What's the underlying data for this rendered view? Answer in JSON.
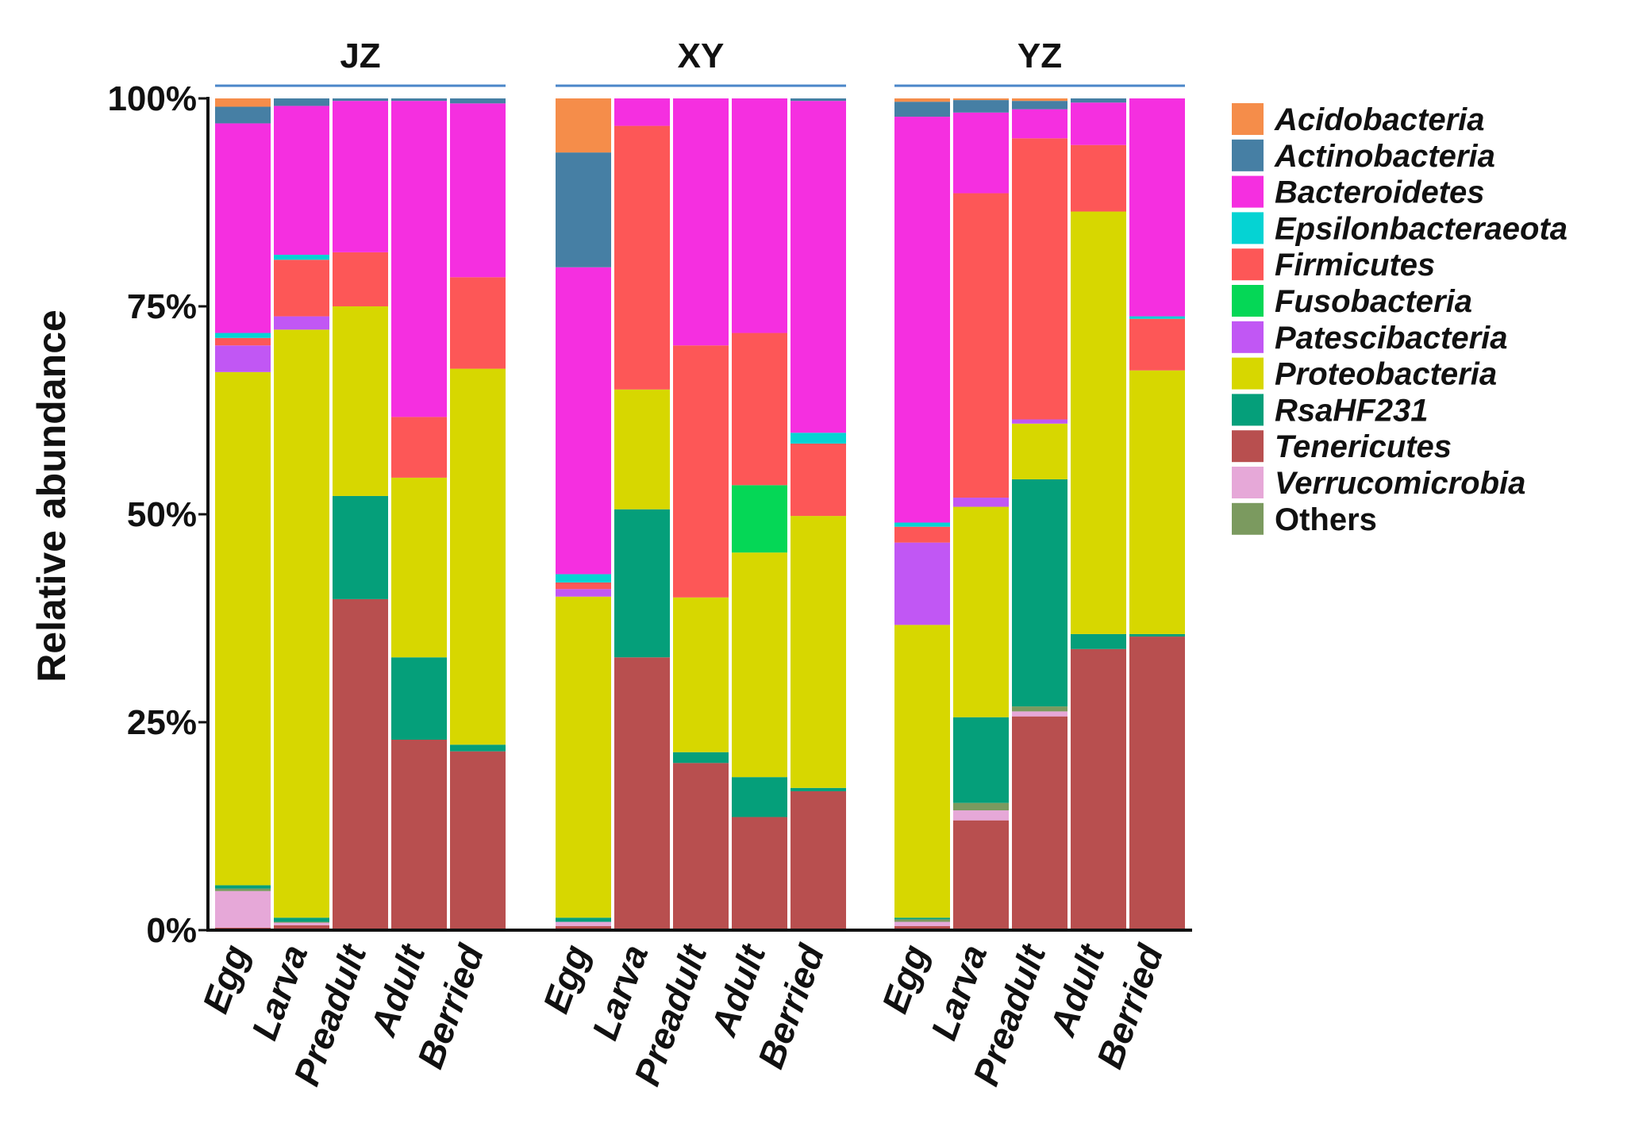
{
  "chart_data": {
    "type": "bar",
    "stacked": true,
    "ylabel": "Relative abundance",
    "ylim": [
      0,
      100
    ],
    "yticks": [
      {
        "value": 0,
        "label": "0%"
      },
      {
        "value": 25,
        "label": "25%"
      },
      {
        "value": 50,
        "label": "50%"
      },
      {
        "value": 75,
        "label": "75%"
      },
      {
        "value": 100,
        "label": "100%"
      }
    ],
    "taxa": [
      {
        "name": "Tenericutes",
        "color": "#b84f4f"
      },
      {
        "name": "Verrucomicrobia",
        "color": "#e6a8d8"
      },
      {
        "name": "Others",
        "color": "#7b9a5f"
      },
      {
        "name": "RsaHF231",
        "color": "#059f7a"
      },
      {
        "name": "Proteobacteria",
        "color": "#d7d700"
      },
      {
        "name": "Patescibacteria",
        "color": "#c157f4"
      },
      {
        "name": "Fusobacteria",
        "color": "#05d756"
      },
      {
        "name": "Firmicutes",
        "color": "#fd5757"
      },
      {
        "name": "Epsilonbacteraeota",
        "color": "#05d3d3"
      },
      {
        "name": "Bacteroidetes",
        "color": "#f52fe0"
      },
      {
        "name": "Actinobacteria",
        "color": "#467fa4"
      },
      {
        "name": "Acidobacteria",
        "color": "#f58d4a"
      }
    ],
    "legend": [
      {
        "name": "Acidobacteria",
        "color": "#f58d4a"
      },
      {
        "name": "Actinobacteria",
        "color": "#467fa4"
      },
      {
        "name": "Bacteroidetes",
        "color": "#f52fe0"
      },
      {
        "name": "Epsilonbacteraeota",
        "color": "#05d3d3"
      },
      {
        "name": "Firmicutes",
        "color": "#fd5757"
      },
      {
        "name": "Fusobacteria",
        "color": "#05d756"
      },
      {
        "name": "Patescibacteria",
        "color": "#c157f4"
      },
      {
        "name": "Proteobacteria",
        "color": "#d7d700"
      },
      {
        "name": "RsaHF231",
        "color": "#059f7a"
      },
      {
        "name": "Tenericutes",
        "color": "#b84f4f"
      },
      {
        "name": "Verrucomicrobia",
        "color": "#e6a8d8"
      },
      {
        "name": "Others",
        "color": "#7b9a5f"
      }
    ],
    "groups": [
      {
        "name": "JZ",
        "bars": [
          {
            "category": "Egg",
            "values": {
              "Tenericutes": 0.3,
              "Verrucomicrobia": 4.4,
              "Others": 0.3,
              "RsaHF231": 0.4,
              "Proteobacteria": 61.7,
              "Patescibacteria": 3.2,
              "Fusobacteria": 0,
              "Firmicutes": 0.9,
              "Epsilonbacteraeota": 0.6,
              "Bacteroidetes": 25.2,
              "Actinobacteria": 2.0,
              "Acidobacteria": 1.0
            }
          },
          {
            "category": "Larva",
            "values": {
              "Tenericutes": 0.6,
              "Verrucomicrobia": 0.3,
              "Others": 0.1,
              "RsaHF231": 0.5,
              "Proteobacteria": 70.7,
              "Patescibacteria": 1.6,
              "Fusobacteria": 0,
              "Firmicutes": 6.8,
              "Epsilonbacteraeota": 0.6,
              "Bacteroidetes": 17.9,
              "Actinobacteria": 0.9,
              "Acidobacteria": 0
            }
          },
          {
            "category": "Preadult",
            "values": {
              "Tenericutes": 39.8,
              "Verrucomicrobia": 0,
              "Others": 0,
              "RsaHF231": 12.4,
              "Proteobacteria": 22.8,
              "Patescibacteria": 0,
              "Fusobacteria": 0,
              "Firmicutes": 6.5,
              "Epsilonbacteraeota": 0,
              "Bacteroidetes": 18.2,
              "Actinobacteria": 0.3,
              "Acidobacteria": 0
            }
          },
          {
            "category": "Adult",
            "values": {
              "Tenericutes": 22.9,
              "Verrucomicrobia": 0,
              "Others": 0,
              "RsaHF231": 9.9,
              "Proteobacteria": 21.6,
              "Patescibacteria": 0,
              "Fusobacteria": 0,
              "Firmicutes": 7.3,
              "Epsilonbacteraeota": 0,
              "Bacteroidetes": 38.0,
              "Actinobacteria": 0.3,
              "Acidobacteria": 0
            }
          },
          {
            "category": "Berried",
            "values": {
              "Tenericutes": 21.5,
              "Verrucomicrobia": 0,
              "Others": 0,
              "RsaHF231": 0.8,
              "Proteobacteria": 45.2,
              "Patescibacteria": 0,
              "Fusobacteria": 0,
              "Firmicutes": 11.0,
              "Epsilonbacteraeota": 0,
              "Bacteroidetes": 20.9,
              "Actinobacteria": 0.6,
              "Acidobacteria": 0
            }
          }
        ]
      },
      {
        "name": "XY",
        "bars": [
          {
            "category": "Egg",
            "values": {
              "Tenericutes": 0.5,
              "Verrucomicrobia": 0.5,
              "Others": 0,
              "RsaHF231": 0.5,
              "Proteobacteria": 38.6,
              "Patescibacteria": 0.9,
              "Fusobacteria": 0,
              "Firmicutes": 0.8,
              "Epsilonbacteraeota": 1.0,
              "Bacteroidetes": 36.9,
              "Actinobacteria": 13.8,
              "Acidobacteria": 6.5
            }
          },
          {
            "category": "Larva",
            "values": {
              "Tenericutes": 32.8,
              "Verrucomicrobia": 0,
              "Others": 0,
              "RsaHF231": 17.8,
              "Proteobacteria": 14.4,
              "Patescibacteria": 0,
              "Fusobacteria": 0,
              "Firmicutes": 31.7,
              "Epsilonbacteraeota": 0,
              "Bacteroidetes": 3.3,
              "Actinobacteria": 0,
              "Acidobacteria": 0
            }
          },
          {
            "category": "Preadult",
            "values": {
              "Tenericutes": 20.1,
              "Verrucomicrobia": 0,
              "Others": 0,
              "RsaHF231": 1.3,
              "Proteobacteria": 18.6,
              "Patescibacteria": 0,
              "Fusobacteria": 0,
              "Firmicutes": 30.3,
              "Epsilonbacteraeota": 0,
              "Bacteroidetes": 29.7,
              "Actinobacteria": 0,
              "Acidobacteria": 0
            }
          },
          {
            "category": "Adult",
            "values": {
              "Tenericutes": 13.6,
              "Verrucomicrobia": 0,
              "Others": 0,
              "RsaHF231": 4.8,
              "Proteobacteria": 27.0,
              "Patescibacteria": 0,
              "Fusobacteria": 8.1,
              "Firmicutes": 18.3,
              "Epsilonbacteraeota": 0,
              "Bacteroidetes": 28.2,
              "Actinobacteria": 0,
              "Acidobacteria": 0
            }
          },
          {
            "category": "Berried",
            "values": {
              "Tenericutes": 16.7,
              "Verrucomicrobia": 0,
              "Others": 0,
              "RsaHF231": 0.4,
              "Proteobacteria": 32.7,
              "Patescibacteria": 0,
              "Fusobacteria": 0,
              "Firmicutes": 8.7,
              "Epsilonbacteraeota": 1.3,
              "Bacteroidetes": 39.9,
              "Actinobacteria": 0.3,
              "Acidobacteria": 0
            }
          }
        ]
      },
      {
        "name": "YZ",
        "bars": [
          {
            "category": "Egg",
            "values": {
              "Tenericutes": 0.5,
              "Verrucomicrobia": 0.5,
              "Others": 0.3,
              "RsaHF231": 0.2,
              "Proteobacteria": 35.2,
              "Patescibacteria": 9.9,
              "Fusobacteria": 0,
              "Firmicutes": 1.9,
              "Epsilonbacteraeota": 0.5,
              "Bacteroidetes": 48.8,
              "Actinobacteria": 1.8,
              "Acidobacteria": 0.4
            }
          },
          {
            "category": "Larva",
            "values": {
              "Tenericutes": 13.2,
              "Verrucomicrobia": 1.2,
              "Others": 0.9,
              "RsaHF231": 10.3,
              "Proteobacteria": 25.3,
              "Patescibacteria": 1.1,
              "Fusobacteria": 0,
              "Firmicutes": 36.6,
              "Epsilonbacteraeota": 0,
              "Bacteroidetes": 9.7,
              "Actinobacteria": 1.5,
              "Acidobacteria": 0.2
            }
          },
          {
            "category": "Preadult",
            "values": {
              "Tenericutes": 25.7,
              "Verrucomicrobia": 0.6,
              "Others": 0.6,
              "RsaHF231": 27.3,
              "Proteobacteria": 6.7,
              "Patescibacteria": 0.5,
              "Fusobacteria": 0,
              "Firmicutes": 33.8,
              "Epsilonbacteraeota": 0,
              "Bacteroidetes": 3.5,
              "Actinobacteria": 1.0,
              "Acidobacteria": 0.3
            }
          },
          {
            "category": "Adult",
            "values": {
              "Tenericutes": 33.8,
              "Verrucomicrobia": 0,
              "Others": 0,
              "RsaHF231": 1.8,
              "Proteobacteria": 50.8,
              "Patescibacteria": 0,
              "Fusobacteria": 0,
              "Firmicutes": 8.0,
              "Epsilonbacteraeota": 0,
              "Bacteroidetes": 5.1,
              "Actinobacteria": 0.5,
              "Acidobacteria": 0
            }
          },
          {
            "category": "Berried",
            "values": {
              "Tenericutes": 35.3,
              "Verrucomicrobia": 0,
              "Others": 0,
              "RsaHF231": 0.3,
              "Proteobacteria": 31.7,
              "Patescibacteria": 0,
              "Fusobacteria": 0,
              "Firmicutes": 6.2,
              "Epsilonbacteraeota": 0.3,
              "Bacteroidetes": 26.2,
              "Actinobacteria": 0,
              "Acidobacteria": 0
            }
          }
        ]
      }
    ]
  }
}
